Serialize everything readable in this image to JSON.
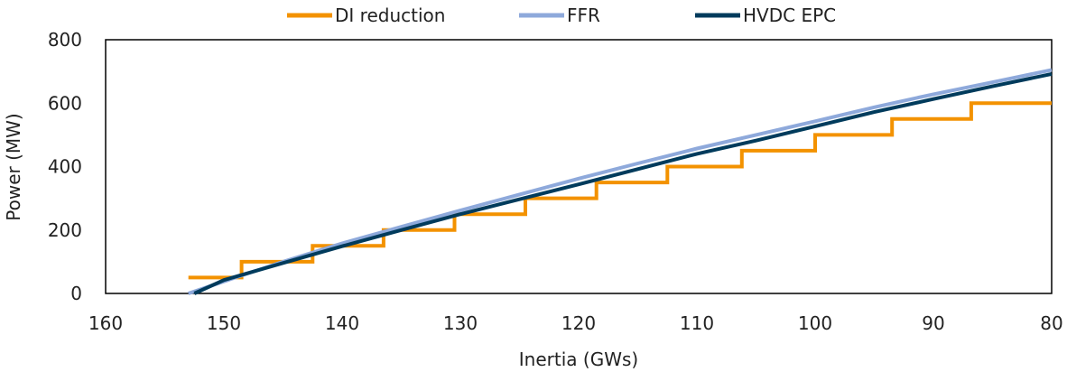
{
  "chart_data": {
    "type": "line",
    "title": "",
    "xlabel": "Inertia (GWs)",
    "ylabel": "Power (MW)",
    "xlim": [
      160,
      80
    ],
    "x_reversed": true,
    "ylim": [
      0,
      800
    ],
    "xticks": [
      160,
      150,
      140,
      130,
      120,
      110,
      100,
      90,
      80
    ],
    "yticks": [
      0,
      200,
      400,
      600,
      800
    ],
    "grid": false,
    "legend_position": "top",
    "series": [
      {
        "name": "DI reduction",
        "color": "#F39200",
        "step": true,
        "x": [
          153,
          148.5,
          148.5,
          142.5,
          142.5,
          136.5,
          136.5,
          130.5,
          130.5,
          124.5,
          124.5,
          118.5,
          118.5,
          112.5,
          112.5,
          106.2,
          106.2,
          100,
          100,
          93.5,
          93.5,
          86.8,
          86.8,
          80
        ],
        "y": [
          50,
          50,
          100,
          100,
          150,
          150,
          200,
          200,
          250,
          250,
          300,
          300,
          350,
          350,
          400,
          400,
          450,
          450,
          500,
          500,
          550,
          550,
          600,
          600
        ]
      },
      {
        "name": "FFR",
        "color": "#8EA9DB",
        "step": false,
        "x": [
          153,
          150,
          145,
          140,
          135,
          130,
          125,
          120,
          115,
          110,
          105,
          100,
          95,
          90,
          85,
          80
        ],
        "y": [
          0,
          38,
          100,
          158,
          210,
          262,
          312,
          362,
          410,
          457,
          500,
          543,
          587,
          628,
          666,
          705
        ]
      },
      {
        "name": "HVDC EPC",
        "color": "#003B5C",
        "step": false,
        "x": [
          152.5,
          150,
          145,
          140,
          135,
          130,
          125,
          120,
          115,
          110,
          105,
          100,
          95,
          90,
          85,
          80
        ],
        "y": [
          0,
          42,
          96,
          149,
          200,
          250,
          297,
          344,
          392,
          440,
          482,
          527,
          572,
          613,
          653,
          692
        ]
      }
    ]
  }
}
